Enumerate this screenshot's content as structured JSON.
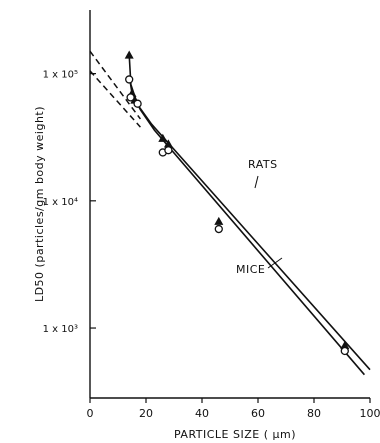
{
  "chart_data": {
    "type": "scatter",
    "title": "",
    "xlabel": "PARTICLE SIZE ( μm)",
    "ylabel": "LD50 (particles/gm body weight)",
    "xlim": [
      0,
      100
    ],
    "ylim": [
      300,
      300000
    ],
    "yscale": "log",
    "grid": false,
    "x_ticks": [
      0,
      20,
      40,
      60,
      80,
      100
    ],
    "x_tick_labels": [
      "0",
      "20",
      "40",
      "60",
      "80",
      "100"
    ],
    "y_ticks": [
      1000,
      10000,
      100000
    ],
    "y_tick_labels": [
      "1 x 10³",
      "1 x 10⁴",
      "1 x 10⁵"
    ],
    "series": [
      {
        "name": "RATS",
        "marker": "filled-triangle",
        "points": [
          {
            "x": 14,
            "y": 140000
          },
          {
            "x": 15,
            "y": 70000
          },
          {
            "x": 16,
            "y": 62000
          },
          {
            "x": 26,
            "y": 31000
          },
          {
            "x": 28,
            "y": 28000
          },
          {
            "x": 46,
            "y": 6900
          },
          {
            "x": 91,
            "y": 730
          }
        ],
        "fit": [
          {
            "x": 14,
            "y": 140000
          },
          {
            "x": 14.6,
            "y": 82000
          },
          {
            "x": 17,
            "y": 57000
          },
          {
            "x": 22,
            "y": 40000
          },
          {
            "x": 100,
            "y": 470
          }
        ],
        "extrapolation": [
          {
            "x": 0,
            "y": 150000
          },
          {
            "x": 18,
            "y": 44000
          }
        ]
      },
      {
        "name": "MICE",
        "marker": "open-circle",
        "points": [
          {
            "x": 14,
            "y": 90000
          },
          {
            "x": 14.5,
            "y": 65000
          },
          {
            "x": 17,
            "y": 58000
          },
          {
            "x": 26,
            "y": 24000
          },
          {
            "x": 28,
            "y": 25000
          },
          {
            "x": 46,
            "y": 6000
          },
          {
            "x": 91,
            "y": 660
          }
        ],
        "fit": [
          {
            "x": 14.2,
            "y": 90000
          },
          {
            "x": 15,
            "y": 70000
          },
          {
            "x": 18,
            "y": 52000
          },
          {
            "x": 23,
            "y": 36000
          },
          {
            "x": 98,
            "y": 430
          }
        ],
        "extrapolation": [
          {
            "x": 0,
            "y": 105000
          },
          {
            "x": 18,
            "y": 38000
          }
        ]
      }
    ],
    "annotations": [
      "RATS",
      "MICE"
    ]
  }
}
